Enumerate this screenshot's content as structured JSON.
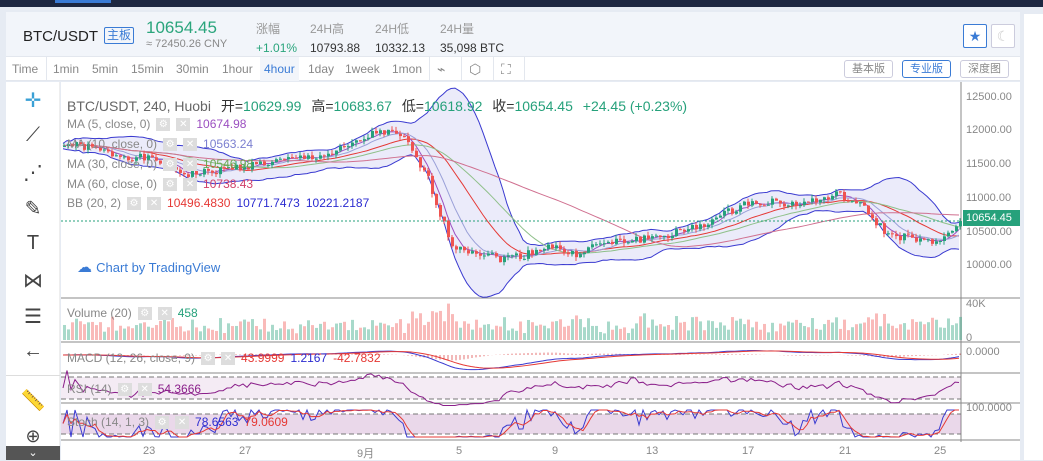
{
  "header": {
    "symbol": "BTC/USDT",
    "badge": "主板",
    "price": "10654.45",
    "cny": "≈ 72450.26 CNY",
    "stats": [
      {
        "label": "涨幅",
        "value": "+1.01%"
      },
      {
        "label": "24H高",
        "value": "10793.88"
      },
      {
        "label": "24H低",
        "value": "10332.13"
      },
      {
        "label": "24H量",
        "value": "35,098 BTC"
      }
    ],
    "icons": [
      "star-icon",
      "moon-icon"
    ]
  },
  "toolbar": {
    "intervals": [
      "Time",
      "1min",
      "5min",
      "15min",
      "30min",
      "1hour",
      "4hour",
      "1day",
      "1week",
      "1mon"
    ],
    "active": "4hour",
    "versions": [
      "基本版",
      "专业版",
      "深度图"
    ],
    "active_version": "专业版"
  },
  "legend": {
    "title": "BTC/USDT, 240, Huobi",
    "open_l": "开=",
    "open": "10629.99",
    "high_l": "高=",
    "high": "10683.67",
    "low_l": "低=",
    "low": "10618.92",
    "close_l": "收=",
    "close": "10654.45",
    "change": "+24.45 (+0.23%)",
    "ma5": {
      "label": "MA (5, close, 0)",
      "value": "10674.98"
    },
    "ma10": {
      "label": "MA (10, close, 0)",
      "value": "10563.24"
    },
    "ma30": {
      "label": "MA (30, close, 0)",
      "value": "10546.98"
    },
    "ma60": {
      "label": "MA (60, close, 0)",
      "value": "10738.43"
    },
    "bb": {
      "label": "BB (20, 2)",
      "v1": "10496.4830",
      "v2": "10771.7473",
      "v3": "10221.2187"
    },
    "volume": {
      "label": "Volume (20)",
      "value": "458"
    },
    "macd": {
      "label": "MACD (12, 26, close, 9)",
      "v1": "43.9999",
      "v2": "1.2167",
      "v3": "-42.7832"
    },
    "rsi": {
      "label": "RSI (14)",
      "value": "54.3666"
    },
    "stoch": {
      "label": "Stoch (14, 1, 3)",
      "v1": "78.6563",
      "v2": "79.0609"
    }
  },
  "watermark": "Chart by TradingView",
  "price_axis": [
    "12500.00",
    "12000.00",
    "11500.00",
    "11000.00",
    "10500.00",
    "10000.00"
  ],
  "last_price": "10654.45",
  "volume_axis": [
    "40K",
    "0"
  ],
  "macd_axis": "0.0000",
  "stoch_axis": "100.0000",
  "date_axis": [
    "23",
    "27",
    "9月",
    "5",
    "9",
    "13",
    "17",
    "21",
    "25"
  ],
  "colors": {
    "up": "#26a17b",
    "down": "#ef5350",
    "accent": "#3a7bd5"
  },
  "chart_data": {
    "type": "candlestick",
    "unit": "USDT",
    "interval": "4hour",
    "daily_close_from_aug19": [
      11800,
      11750,
      11650,
      11600,
      11550,
      11350,
      11380,
      11450,
      11500,
      11550,
      11600,
      11650,
      11800,
      12000,
      11900,
      11300,
      10300,
      10200,
      10100,
      10150,
      10300,
      10150,
      10300,
      10350,
      10400,
      10450,
      10550,
      10700,
      10900,
      10950,
      10900,
      10950,
      11050,
      10850,
      10450,
      10400,
      10300,
      10654
    ],
    "ylim": [
      9700,
      12650
    ]
  }
}
